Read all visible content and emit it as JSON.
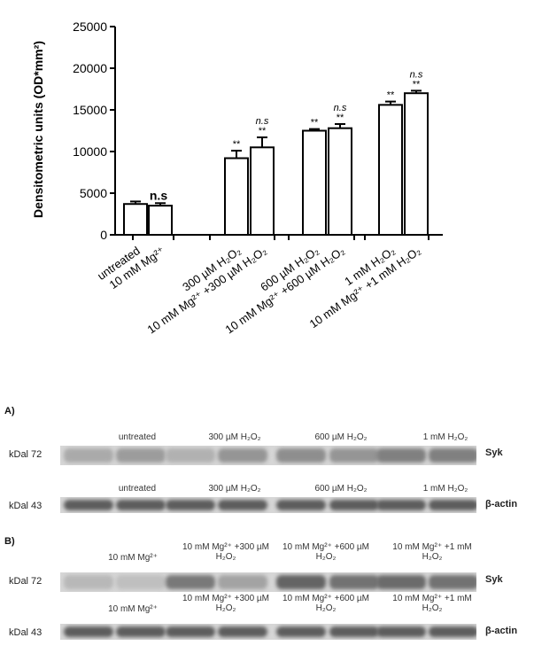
{
  "chart_data": {
    "type": "bar",
    "ylabel": "Densitometric units (OD*mm²)",
    "ylim": [
      0,
      25000
    ],
    "yticks": [
      "0",
      "5000",
      "10000",
      "15000",
      "20000",
      "25000"
    ],
    "categories": [
      "untreated",
      "10 mM Mg²⁺",
      "300 µM H₂O₂",
      "10 mM Mg²⁺ +300 µM H₂O₂",
      "600 µM H₂O₂",
      "10 mM Mg²⁺ +600 µM H₂O₂",
      "1 mM H₂O₂",
      "10 mM Mg²⁺ +1 mM H₂O₂"
    ],
    "values": [
      3700,
      3500,
      9200,
      10500,
      12500,
      12800,
      15600,
      17000
    ],
    "errors": [
      300,
      300,
      900,
      1200,
      200,
      500,
      400,
      300
    ],
    "significance": [
      "",
      "n.s",
      "**",
      "n.s **",
      "**",
      "n.s **",
      "**",
      "n.s **"
    ],
    "grid": false
  },
  "panel_a": {
    "label": "A)",
    "row1": {
      "kda": "kDal 72",
      "protein": "Syk",
      "headers": [
        "untreated",
        "300 µM H₂O₂",
        "600 µM H₂O₂",
        "1 mM H₂O₂"
      ],
      "intensities": [
        0.25,
        0.35,
        0.2,
        0.4,
        0.45,
        0.4,
        0.55,
        0.55
      ]
    },
    "row2": {
      "kda": "kDal 43",
      "protein": "β-actin",
      "headers": [
        "untreated",
        "300 µM H₂O₂",
        "600 µM H₂O₂",
        "1 mM H₂O₂"
      ],
      "intensities": [
        0.8,
        0.8,
        0.8,
        0.8,
        0.8,
        0.8,
        0.8,
        0.8
      ]
    }
  },
  "panel_b": {
    "label": "B)",
    "row1": {
      "kda": "kDal 72",
      "protein": "Syk",
      "headers": [
        "10 mM Mg²⁺",
        "10 mM Mg²⁺ +300 µM H₂O₂",
        "10 mM Mg²⁺ +600 µM H₂O₂",
        "10 mM Mg²⁺ +1 mM H₂O₂"
      ],
      "intensities": [
        0.15,
        0.1,
        0.6,
        0.3,
        0.75,
        0.65,
        0.7,
        0.65
      ]
    },
    "row2": {
      "kda": "kDal 43",
      "protein": "β-actin",
      "headers": [
        "10 mM Mg²⁺",
        "10 mM Mg²⁺ +300 µM H₂O₂",
        "10 mM Mg²⁺ +600 µM H₂O₂",
        "10 mM Mg²⁺ +1 mM H₂O₂"
      ],
      "intensities": [
        0.8,
        0.8,
        0.8,
        0.8,
        0.8,
        0.8,
        0.8,
        0.8
      ]
    }
  }
}
